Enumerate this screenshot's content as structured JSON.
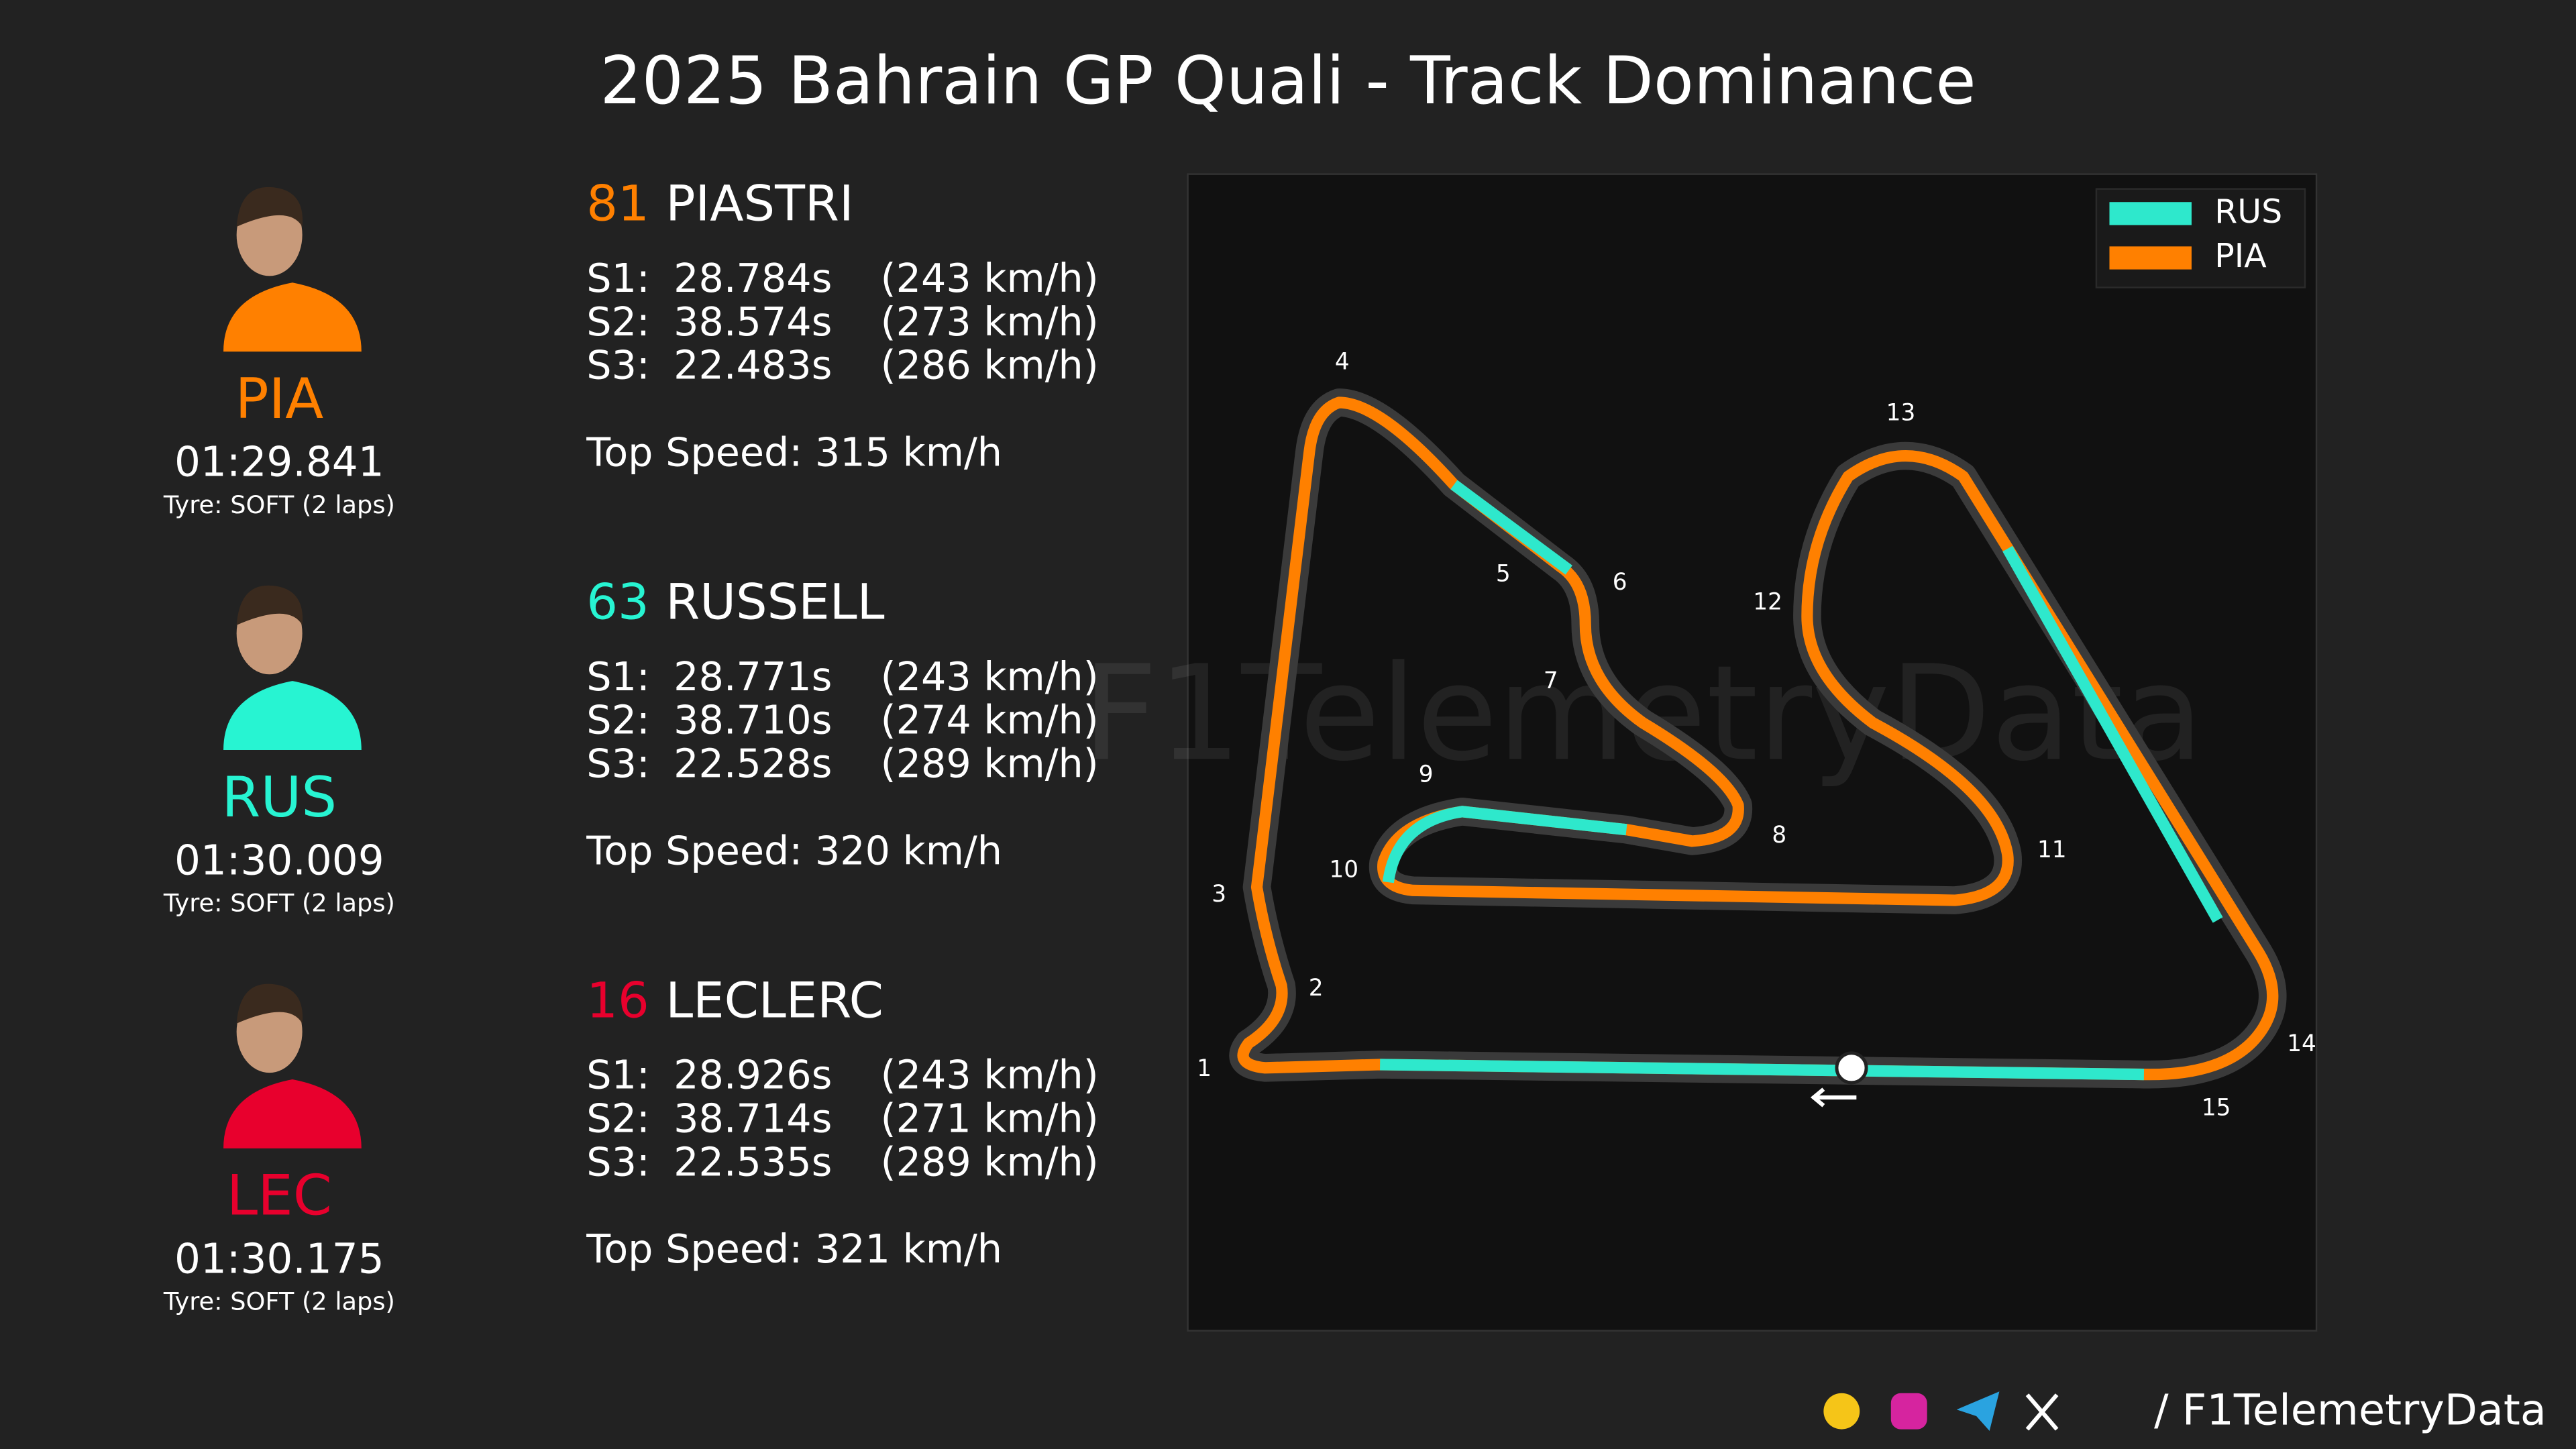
{
  "header": {
    "title": "2025 Bahrain GP Quali - Track Dominance"
  },
  "drivers": [
    {
      "number": "81",
      "name": "PIASTRI",
      "code": "PIA",
      "lap_time": "01:29.841",
      "tyre": "Tyre: SOFT (2 laps)",
      "color": "#ff8000",
      "sectors": [
        {
          "label": "S1:",
          "time": "28.784s",
          "speed": "(243 km/h)"
        },
        {
          "label": "S2:",
          "time": "38.574s",
          "speed": "(273 km/h)"
        },
        {
          "label": "S3:",
          "time": "22.483s",
          "speed": "(286 km/h)"
        }
      ],
      "top_speed": "Top Speed: 315 km/h"
    },
    {
      "number": "63",
      "name": "RUSSELL",
      "code": "RUS",
      "lap_time": "01:30.009",
      "tyre": "Tyre: SOFT (2 laps)",
      "color": "#27f4d2",
      "sectors": [
        {
          "label": "S1:",
          "time": "28.771s",
          "speed": "(243 km/h)"
        },
        {
          "label": "S2:",
          "time": "38.710s",
          "speed": "(274 km/h)"
        },
        {
          "label": "S3:",
          "time": "22.528s",
          "speed": "(289 km/h)"
        }
      ],
      "top_speed": "Top Speed: 320 km/h"
    },
    {
      "number": "16",
      "name": "LECLERC",
      "code": "LEC",
      "lap_time": "01:30.175",
      "tyre": "Tyre: SOFT (2 laps)",
      "color": "#e8002d",
      "sectors": [
        {
          "label": "S1:",
          "time": "28.926s",
          "speed": "(243 km/h)"
        },
        {
          "label": "S2:",
          "time": "38.714s",
          "speed": "(271 km/h)"
        },
        {
          "label": "S3:",
          "time": "22.535s",
          "speed": "(289 km/h)"
        }
      ],
      "top_speed": "Top Speed: 321 km/h"
    }
  ],
  "legend": [
    {
      "name": "RUS",
      "color": "#2ee8cc"
    },
    {
      "name": "PIA",
      "color": "#ff8000"
    }
  ],
  "corners": [
    "1",
    "2",
    "3",
    "4",
    "5",
    "6",
    "7",
    "8",
    "9",
    "10",
    "11",
    "12",
    "13",
    "14",
    "15"
  ],
  "watermark": "F1TelemetryData",
  "footer": {
    "handle": "/ F1TelemetryData"
  }
}
